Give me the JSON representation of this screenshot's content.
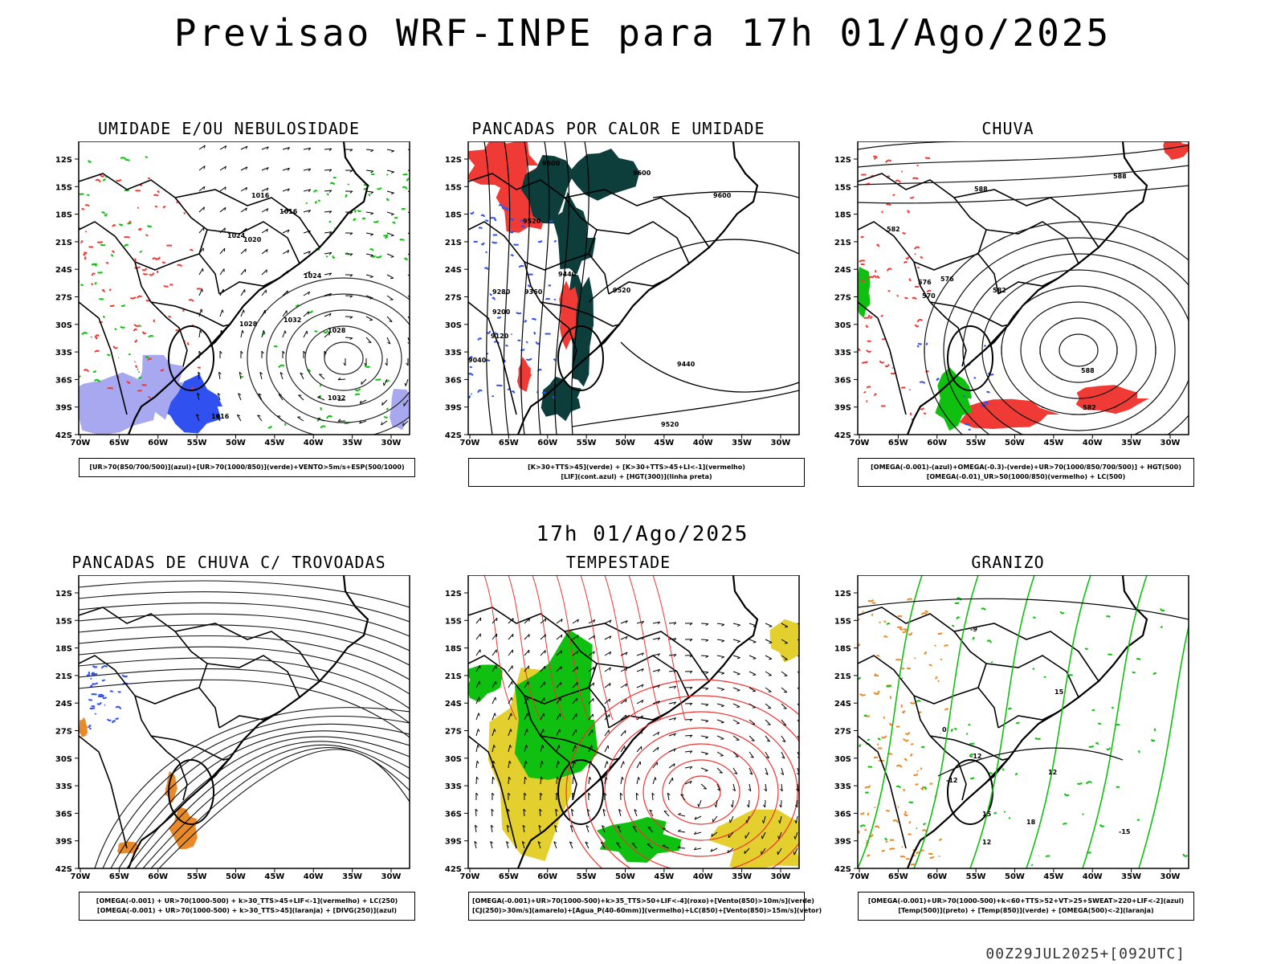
{
  "header": {
    "title": "Previsao WRF-INPE  para 17h 01/Ago/2025",
    "subtitle": "17h 01/Ago/2025",
    "footer": "00Z29JUL2025+[092UTC]"
  },
  "axes": {
    "lat_labels": [
      "12S",
      "15S",
      "18S",
      "21S",
      "24S",
      "27S",
      "30S",
      "33S",
      "36S",
      "39S",
      "42S"
    ],
    "lon_labels": [
      "70W",
      "65W",
      "60W",
      "55W",
      "50W",
      "45W",
      "40W",
      "35W",
      "30W"
    ]
  },
  "colors": {
    "red": "#f03a36",
    "green": "#10c010",
    "blue": "#3050f0",
    "lavender": "#a8a8f0",
    "darkteal": "#0d3e3c",
    "yellow": "#e3d02e",
    "orange": "#e98a2a"
  },
  "panels": [
    {
      "title": "UMIDADE E/OU NEBULOSIDADE",
      "legend": [
        "[UR>70(850/700/500)](azul)+[UR>70(1000/850)](verde)+VENTO>5m/s+ESP(500/1000)"
      ],
      "contour_labels": [
        "1016",
        "1016",
        "1020",
        "1024",
        "1028",
        "1032",
        "1032",
        "1028",
        "1024",
        "1016"
      ]
    },
    {
      "title": "PANCADAS POR CALOR E UMIDADE",
      "legend": [
        "[K>30+TTS>45](verde) + [K>30+TTS>45+LI<-1](vermelho)",
        "[LIF](cont.azul) + [HGT(300)](linha preta)"
      ],
      "contour_labels": [
        "9600",
        "9600",
        "9600",
        "9520",
        "9440",
        "9360",
        "9280",
        "9200",
        "9120",
        "9040",
        "9520",
        "9440",
        "9520"
      ]
    },
    {
      "title": "CHUVA",
      "legend": [
        "[OMEGA(-0.001)-(azul)+OMEGA(-0.3)-(verde)+UR>70(1000/850/700/500)] + HGT(500)",
        "[OMEGA(-0.01)_UR>50(1000/850)(vermelho) + LC(500)"
      ],
      "contour_labels": [
        "588",
        "588",
        "582",
        "576",
        "576",
        "570",
        "582",
        "588",
        "582"
      ]
    },
    {
      "title": "PANCADAS DE CHUVA C/ TROVOADAS",
      "legend": [
        "[OMEGA(-0.001) + UR>70(1000-500) + k>30_TTS>45+LIF<-1](vermelho) + LC(250)",
        "[OMEGA(-0.001) + UR>70(1000-500) + k>30_TTS>45](laranja) + [DIVG(250)](azul)"
      ]
    },
    {
      "title": "TEMPESTADE",
      "legend": [
        "[OMEGA(-0.001)+UR>70(1000-500)+k>35_TTS>50+LIF<-4](roxo)+[Vento(850)>10m/s](verde)",
        "[CJ(250)>30m/s](amarelo)+[Agua_P(40-60mm)](vermelho)+LC(850)+[Vento(850)>15m/s](vetor)"
      ]
    },
    {
      "title": "GRANIZO",
      "legend": [
        "[OMEGA(-0.001)+UR>70(1000-500)+k<60+TTS>52+VT>25+SWEAT>220+LIF<-2](azul)",
        "[Temp(500)](preto) + [Temp(850)](verde) + [OMEGA(500)<-2](laranja)"
      ],
      "contour_labels": [
        "-9",
        "0",
        "-12",
        "-12",
        "-15",
        "15",
        "12",
        "15",
        "12",
        "18"
      ]
    }
  ]
}
